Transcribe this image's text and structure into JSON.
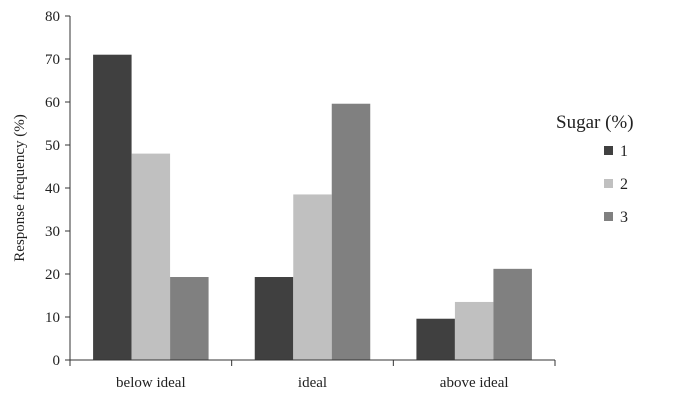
{
  "chart_data": {
    "type": "bar",
    "title": "",
    "xlabel": "",
    "ylabel": "Response frequency (%)",
    "ylim": [
      0,
      80
    ],
    "yticks": [
      0,
      10,
      20,
      30,
      40,
      50,
      60,
      70,
      80
    ],
    "grid": false,
    "legend_position": "right",
    "legend_title": "Sugar (%)",
    "categories": [
      "below ideal",
      "ideal",
      "above ideal"
    ],
    "series": [
      {
        "name": "1",
        "color": "#404040",
        "values": [
          71,
          19.3,
          9.6
        ]
      },
      {
        "name": "2",
        "color": "#c0c0c0",
        "values": [
          48,
          38.5,
          13.5
        ]
      },
      {
        "name": "3",
        "color": "#808080",
        "values": [
          19.3,
          59.6,
          21.2
        ]
      }
    ]
  }
}
